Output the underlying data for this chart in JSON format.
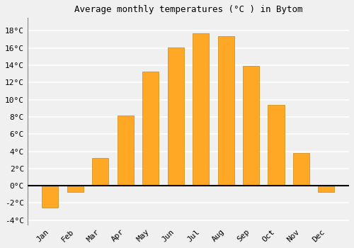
{
  "title": "Average monthly temperatures (°C ) in Bytom",
  "months": [
    "Jan",
    "Feb",
    "Mar",
    "Apr",
    "May",
    "Jun",
    "Jul",
    "Aug",
    "Sep",
    "Oct",
    "Nov",
    "Dec"
  ],
  "values": [
    -2.5,
    -0.7,
    3.2,
    8.2,
    13.3,
    16.1,
    17.7,
    17.4,
    13.9,
    9.4,
    3.8,
    -0.7
  ],
  "bar_color": "#FFA826",
  "bar_edge_color": "#C8880A",
  "bar_edge_width": 0.5,
  "ylim": [
    -4.5,
    19.5
  ],
  "yticks": [
    -4,
    -2,
    0,
    2,
    4,
    6,
    8,
    10,
    12,
    14,
    16,
    18
  ],
  "ytick_labels": [
    "-4°C",
    "-2°C",
    "0°C",
    "2°C",
    "4°C",
    "6°C",
    "8°C",
    "10°C",
    "12°C",
    "14°C",
    "16°C",
    "18°C"
  ],
  "background_color": "#f0f0f0",
  "plot_bg_color": "#f0f0f0",
  "grid_color": "#ffffff",
  "zero_line_color": "#000000",
  "title_fontsize": 9,
  "tick_fontsize": 8
}
